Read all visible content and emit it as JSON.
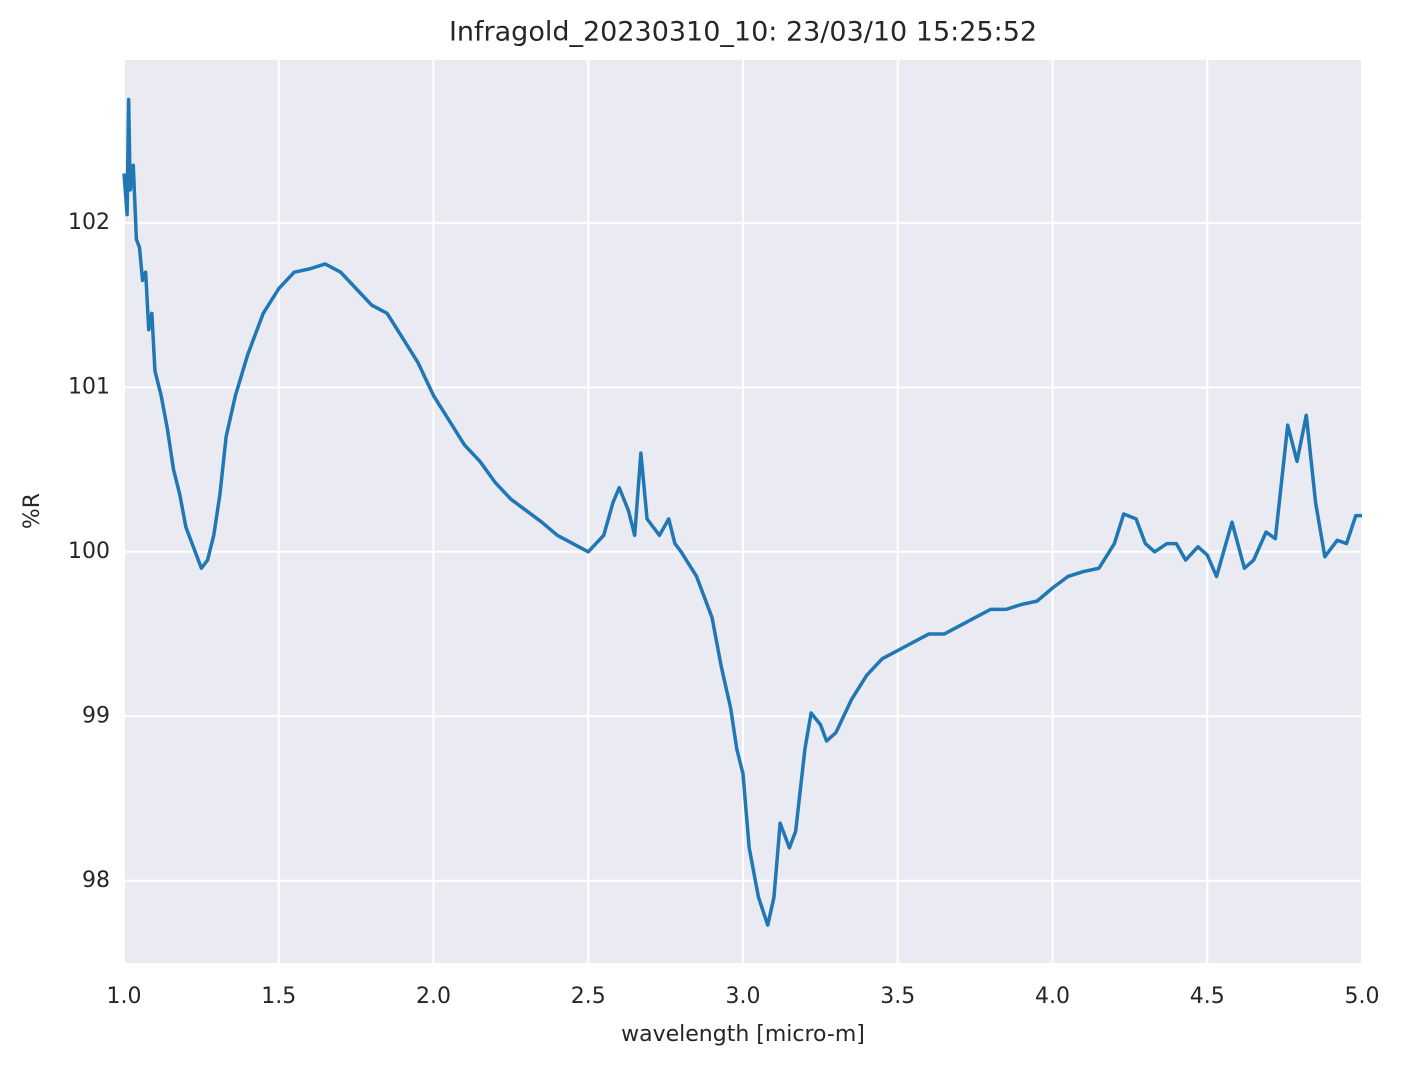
{
  "chart_data": {
    "type": "line",
    "title": "Infragold_20230310_10:  23/03/10 15:25:52",
    "xlabel": "wavelength [micro-m]",
    "ylabel": "%R",
    "color": "#1f77b4",
    "grid": true,
    "xlim": [
      1.0,
      5.0
    ],
    "ylim": [
      97.5,
      102.99
    ],
    "xticks": [
      {
        "value": 1,
        "label": "1.0"
      },
      1.5,
      {
        "value": 2,
        "label": "2.0"
      },
      2.5,
      {
        "value": 3,
        "label": "3.0"
      },
      3.5,
      {
        "value": 4,
        "label": "4.0"
      },
      4.5,
      {
        "value": 5,
        "label": "5.0"
      }
    ],
    "yticks": [
      98,
      99,
      100,
      101,
      102
    ],
    "x": [
      1.0,
      1.01,
      1.015,
      1.02,
      1.03,
      1.04,
      1.05,
      1.06,
      1.07,
      1.08,
      1.09,
      1.1,
      1.12,
      1.14,
      1.16,
      1.18,
      1.2,
      1.22,
      1.24,
      1.25,
      1.27,
      1.29,
      1.31,
      1.33,
      1.36,
      1.4,
      1.45,
      1.5,
      1.55,
      1.6,
      1.65,
      1.7,
      1.75,
      1.8,
      1.85,
      1.9,
      1.95,
      2.0,
      2.05,
      2.1,
      2.15,
      2.2,
      2.25,
      2.3,
      2.35,
      2.4,
      2.45,
      2.5,
      2.55,
      2.58,
      2.6,
      2.63,
      2.65,
      2.67,
      2.69,
      2.71,
      2.73,
      2.76,
      2.78,
      2.8,
      2.85,
      2.9,
      2.93,
      2.96,
      2.98,
      3.0,
      3.02,
      3.05,
      3.08,
      3.1,
      3.12,
      3.15,
      3.17,
      3.2,
      3.22,
      3.25,
      3.27,
      3.3,
      3.35,
      3.4,
      3.45,
      3.5,
      3.55,
      3.6,
      3.65,
      3.7,
      3.75,
      3.8,
      3.85,
      3.9,
      3.95,
      4.0,
      4.05,
      4.1,
      4.15,
      4.2,
      4.23,
      4.27,
      4.3,
      4.33,
      4.37,
      4.4,
      4.43,
      4.47,
      4.5,
      4.53,
      4.58,
      4.62,
      4.65,
      4.69,
      4.72,
      4.76,
      4.79,
      4.82,
      4.85,
      4.88,
      4.92,
      4.95,
      4.98,
      5.0
    ],
    "values": [
      102.3,
      102.05,
      102.75,
      102.2,
      102.35,
      101.9,
      101.85,
      101.65,
      101.7,
      101.35,
      101.45,
      101.1,
      100.95,
      100.75,
      100.5,
      100.35,
      100.15,
      100.05,
      99.95,
      99.9,
      99.95,
      100.1,
      100.35,
      100.7,
      100.95,
      101.2,
      101.45,
      101.6,
      101.7,
      101.72,
      101.75,
      101.7,
      101.6,
      101.5,
      101.45,
      101.3,
      101.15,
      100.95,
      100.8,
      100.65,
      100.55,
      100.42,
      100.32,
      100.25,
      100.18,
      100.1,
      100.05,
      100.0,
      100.1,
      100.3,
      100.39,
      100.25,
      100.1,
      100.6,
      100.2,
      100.15,
      100.1,
      100.2,
      100.05,
      100.0,
      99.85,
      99.6,
      99.3,
      99.05,
      98.8,
      98.65,
      98.2,
      97.9,
      97.73,
      97.9,
      98.35,
      98.2,
      98.3,
      98.8,
      99.02,
      98.95,
      98.85,
      98.9,
      99.1,
      99.25,
      99.35,
      99.4,
      99.45,
      99.5,
      99.5,
      99.55,
      99.6,
      99.65,
      99.65,
      99.68,
      99.7,
      99.78,
      99.85,
      99.88,
      99.9,
      100.05,
      100.23,
      100.2,
      100.05,
      100.0,
      100.05,
      100.05,
      99.95,
      100.03,
      99.98,
      99.85,
      100.18,
      99.9,
      99.95,
      100.12,
      100.08,
      100.77,
      100.55,
      100.83,
      100.3,
      99.97,
      100.07,
      100.05,
      100.22,
      100.22
    ]
  }
}
